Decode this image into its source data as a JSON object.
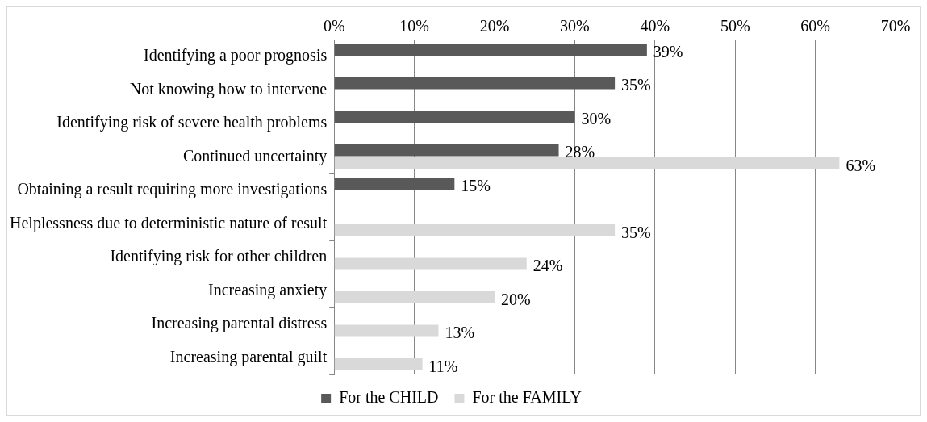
{
  "chart_data": {
    "type": "bar",
    "orientation": "horizontal",
    "categories": [
      "Identifying a poor prognosis",
      "Not knowing how to intervene",
      "Identifying risk of severe health problems",
      "Continued uncertainty",
      "Obtaining a result requiring more investigations",
      "Helplessness due to deterministic nature of result",
      "Identifying risk for other children",
      "Increasing anxiety",
      "Increasing parental distress",
      "Increasing parental guilt"
    ],
    "series": [
      {
        "name": "For the CHILD",
        "color": "#595959",
        "values": [
          39,
          35,
          30,
          28,
          15,
          null,
          null,
          null,
          null,
          null
        ],
        "value_labels": [
          "39%",
          "35%",
          "30%",
          "28%",
          "15%",
          null,
          null,
          null,
          null,
          null
        ]
      },
      {
        "name": "For the FAMILY",
        "color": "#d9d9d9",
        "values": [
          null,
          null,
          null,
          63,
          null,
          35,
          24,
          20,
          13,
          11
        ],
        "value_labels": [
          null,
          null,
          null,
          "63%",
          null,
          "35%",
          "24%",
          "20%",
          "13%",
          "11%"
        ]
      }
    ],
    "xlim": [
      0,
      70
    ],
    "xticks": [
      {
        "value": 0,
        "label": "0%"
      },
      {
        "value": 10,
        "label": "10%"
      },
      {
        "value": 20,
        "label": "20%"
      },
      {
        "value": 30,
        "label": "30%"
      },
      {
        "value": 40,
        "label": "40%"
      },
      {
        "value": 50,
        "label": "50%"
      },
      {
        "value": 60,
        "label": "60%"
      },
      {
        "value": 70,
        "label": "70%"
      }
    ],
    "grid": "x",
    "legend": "bottom"
  }
}
